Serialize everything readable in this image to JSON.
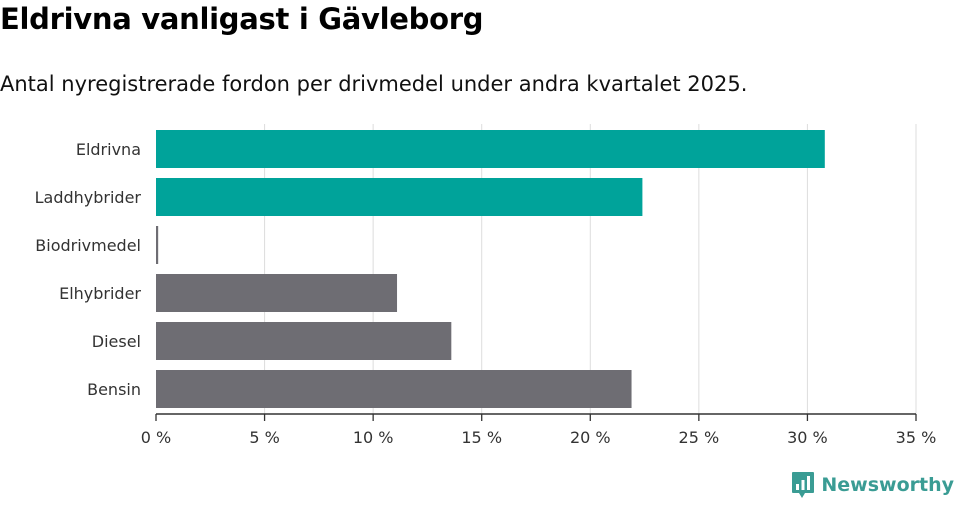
{
  "header": {
    "title": "Eldrivna vanligast i Gävleborg",
    "subtitle": "Antal nyregistrerade fordon per drivmedel under andra kvartalet 2025."
  },
  "brand": {
    "name": "Newsworthy",
    "icon": "newsworthy-logo-icon",
    "color": "#3a9c94"
  },
  "colors": {
    "highlight": "#00a39a",
    "default": "#6e6d73",
    "grid": "#dddddd",
    "axis": "#333333"
  },
  "chart_data": {
    "type": "bar",
    "orientation": "horizontal",
    "categories": [
      "Eldrivna",
      "Laddhybrider",
      "Biodrivmedel",
      "Elhybrider",
      "Diesel",
      "Bensin"
    ],
    "values": [
      30.8,
      22.4,
      0.1,
      11.1,
      13.6,
      21.9
    ],
    "highlight": [
      true,
      true,
      false,
      false,
      false,
      false
    ],
    "xlim": [
      0,
      35
    ],
    "xticks": [
      0,
      5,
      10,
      15,
      20,
      25,
      30,
      35
    ],
    "tick_labels": [
      "0 %",
      "5 %",
      "10 %",
      "15 %",
      "20 %",
      "25 %",
      "30 %",
      "35 %"
    ],
    "grid": true
  }
}
